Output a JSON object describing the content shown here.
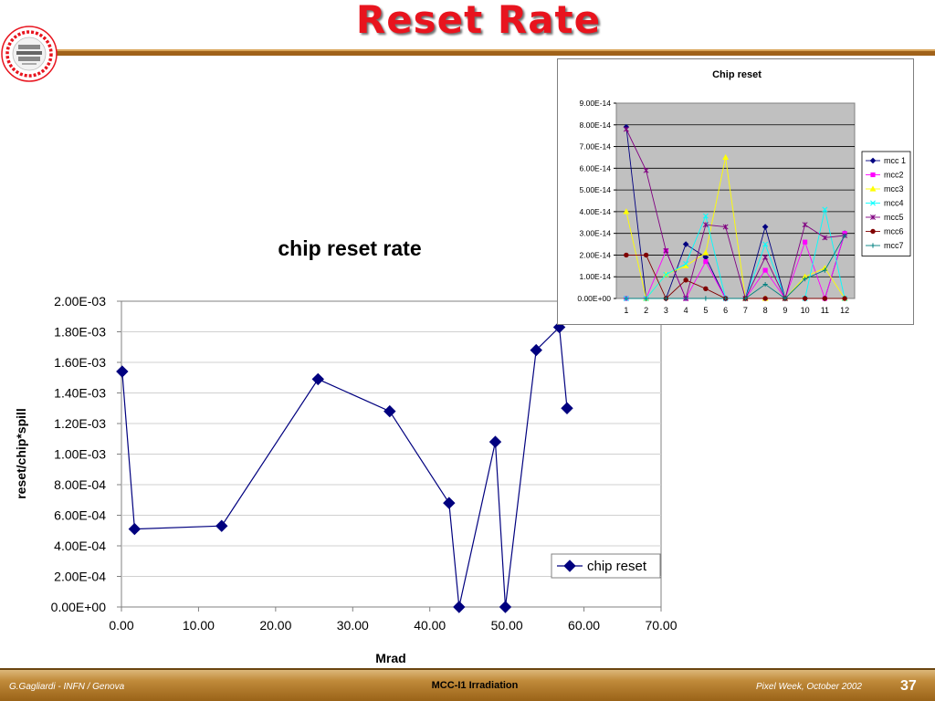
{
  "slide": {
    "title": "Reset Rate",
    "logo_text": "ATLAS Pixel Detector Collaboration",
    "accent_color": "#e8141e",
    "rule_color": "#a0621a"
  },
  "footer": {
    "author": "G.Gagliardi - INFN / Genova",
    "center": "MCC-I1 Irradiation",
    "event": "Pixel Week, October 2002",
    "page_number": "37"
  },
  "chart_data": [
    {
      "type": "line",
      "title": "chip reset rate",
      "xlabel": "Mrad",
      "ylabel": "reset/chip*spill",
      "xlim": [
        0,
        70
      ],
      "ylim": [
        0,
        0.002
      ],
      "x_ticks": [
        "0.00",
        "10.00",
        "20.00",
        "30.00",
        "40.00",
        "50.00",
        "60.00",
        "70.00"
      ],
      "y_ticks": [
        "0.00E+00",
        "2.00E-04",
        "4.00E-04",
        "6.00E-04",
        "8.00E-04",
        "1.00E-03",
        "1.20E-03",
        "1.40E-03",
        "1.60E-03",
        "1.80E-03",
        "2.00E-03"
      ],
      "grid": true,
      "legend_position": "bottom-right",
      "series": [
        {
          "name": "chip reset",
          "color": "#00007f",
          "marker": "diamond",
          "points": [
            [
              0.1,
              0.00154
            ],
            [
              1.7,
              0.00051
            ],
            [
              13,
              0.00053
            ],
            [
              25.5,
              0.00149
            ],
            [
              34.8,
              0.00128
            ],
            [
              42.5,
              0.00068
            ],
            [
              43.8,
              0.0
            ],
            [
              48.5,
              0.00108
            ],
            [
              49.8,
              0.0
            ],
            [
              53.8,
              0.00168
            ],
            [
              56.8,
              0.00183
            ],
            [
              57.8,
              0.0013
            ]
          ]
        }
      ]
    },
    {
      "type": "line",
      "title": "Chip reset",
      "categories": [
        "1",
        "2",
        "3",
        "4",
        "5",
        "6",
        "7",
        "8",
        "9",
        "10",
        "11",
        "12"
      ],
      "ylim": [
        0,
        9e-14
      ],
      "y_ticks": [
        "0.00E+00",
        "1.00E-14",
        "2.00E-14",
        "3.00E-14",
        "4.00E-14",
        "5.00E-14",
        "6.00E-14",
        "7.00E-14",
        "8.00E-14",
        "9.00E-14"
      ],
      "plot_background": "#c0c0c0",
      "grid": true,
      "legend_position": "right",
      "series": [
        {
          "name": "mcc 1",
          "color": "#000080",
          "marker": "diamond",
          "values": [
            7.9e-14,
            0,
            0,
            2.5e-14,
            1.9e-14,
            0,
            0,
            3.3e-14,
            0,
            0,
            0,
            3e-14
          ]
        },
        {
          "name": "mcc2",
          "color": "#ff00ff",
          "marker": "square",
          "values": [
            0,
            0,
            2.2e-14,
            0,
            1.7e-14,
            0,
            0,
            1.3e-14,
            0,
            2.6e-14,
            0,
            3e-14
          ]
        },
        {
          "name": "mcc3",
          "color": "#ffff00",
          "marker": "triangle",
          "values": [
            4e-14,
            0,
            1.1e-14,
            1.5e-14,
            2.1e-14,
            6.5e-14,
            0,
            0,
            0,
            1e-14,
            1.4e-14,
            0
          ]
        },
        {
          "name": "mcc4",
          "color": "#00ffff",
          "marker": "x",
          "values": [
            0,
            0,
            1.1e-14,
            1.6e-14,
            3.8e-14,
            0,
            0,
            2.5e-14,
            0,
            0,
            4.1e-14,
            0
          ]
        },
        {
          "name": "mcc5",
          "color": "#800080",
          "marker": "star",
          "values": [
            7.8e-14,
            5.9e-14,
            2.2e-14,
            0,
            3.4e-14,
            3.3e-14,
            0,
            1.9e-14,
            0,
            3.4e-14,
            2.8e-14,
            2.9e-14
          ]
        },
        {
          "name": "mcc6",
          "color": "#800000",
          "marker": "circle",
          "values": [
            2e-14,
            2e-14,
            0,
            8.5e-15,
            4.5e-15,
            0,
            0,
            0,
            0,
            0,
            0,
            0
          ]
        },
        {
          "name": "mcc7",
          "color": "#008080",
          "marker": "plus",
          "values": [
            0,
            0,
            0,
            0,
            0,
            0,
            0,
            6.5e-15,
            0,
            9e-15,
            1.3e-14,
            2.9e-14
          ]
        }
      ]
    }
  ]
}
